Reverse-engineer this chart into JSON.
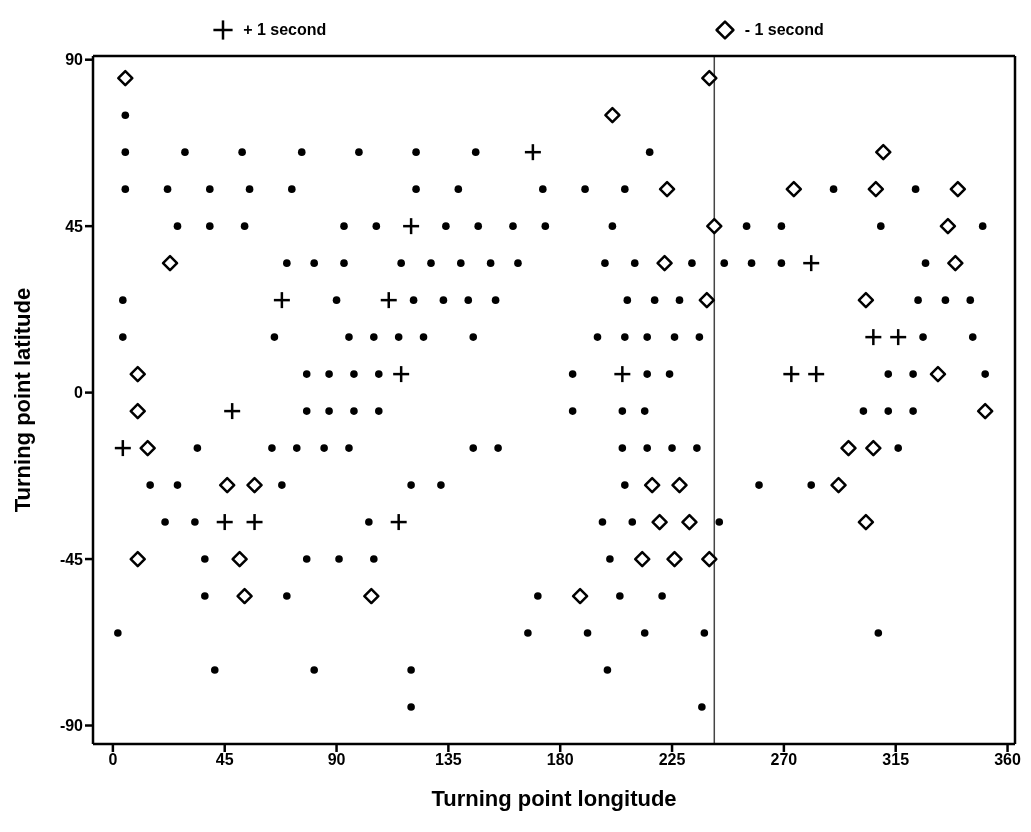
{
  "chart_data": {
    "type": "scatter",
    "xlabel": "Turning point longitude",
    "ylabel": "Turning point latitude",
    "xlim": [
      -8,
      363
    ],
    "ylim": [
      -95,
      91
    ],
    "xticks": [
      0,
      45,
      90,
      135,
      180,
      225,
      270,
      315,
      360
    ],
    "yticks": [
      -90,
      -45,
      0,
      45,
      90
    ],
    "legend": "top",
    "ref_lines": [
      {
        "axis": "x",
        "value": 242,
        "color": "#444444"
      }
    ],
    "series": [
      {
        "name": "+ 1 second",
        "color": "#000000",
        "marker": "cross",
        "x": [
          169,
          120,
          68,
          111,
          116,
          48,
          4,
          45,
          57,
          115,
          281,
          306,
          316,
          273,
          283,
          205
        ],
        "values": [
          65,
          45,
          25,
          25,
          5,
          -5,
          -15,
          -35,
          -35,
          -35,
          35,
          15,
          15,
          5,
          5,
          5
        ]
      },
      {
        "name": "- 1 second",
        "color": "#000000",
        "marker": "diamond",
        "x": [
          5,
          240,
          201,
          310,
          223,
          274,
          307,
          340,
          242,
          336,
          23,
          222,
          339,
          239,
          303,
          10,
          332,
          10,
          351,
          14,
          296,
          306,
          46,
          57,
          217,
          228,
          292,
          220,
          232,
          303,
          10,
          51,
          213,
          226,
          240,
          53,
          104,
          188
        ],
        "values": [
          85,
          85,
          75,
          65,
          55,
          55,
          55,
          55,
          45,
          45,
          35,
          35,
          35,
          25,
          25,
          5,
          5,
          -5,
          -5,
          -15,
          -15,
          -15,
          -25,
          -25,
          -25,
          -25,
          -25,
          -35,
          -35,
          -35,
          -45,
          -45,
          -45,
          -45,
          -45,
          -55,
          -55,
          -55
        ]
      },
      {
        "color": "#000000",
        "marker": "circle",
        "x": [
          5,
          5,
          29,
          52,
          76,
          99,
          122,
          146,
          216,
          5,
          22,
          39,
          55,
          72,
          122,
          139,
          173,
          190,
          206,
          290,
          323,
          26,
          39,
          53,
          93,
          106,
          134,
          147,
          161,
          174,
          201,
          255,
          269,
          309,
          350,
          70,
          81,
          93,
          116,
          128,
          140,
          152,
          163,
          198,
          210,
          233,
          246,
          257,
          269,
          327,
          4,
          90,
          121,
          133,
          143,
          154,
          207,
          218,
          228,
          324,
          335,
          345,
          4,
          65,
          95,
          105,
          115,
          125,
          145,
          195,
          206,
          215,
          226,
          236,
          326,
          346,
          78,
          87,
          97,
          107,
          185,
          215,
          224,
          312,
          322,
          351,
          78,
          87,
          97,
          107,
          185,
          205,
          214,
          302,
          312,
          322,
          34,
          64,
          74,
          85,
          95,
          145,
          155,
          205,
          215,
          225,
          235,
          316,
          15,
          26,
          68,
          120,
          132,
          206,
          260,
          281,
          21,
          33,
          103,
          197,
          209,
          244,
          37,
          78,
          91,
          105,
          200,
          37,
          70,
          171,
          204,
          221,
          2,
          167,
          191,
          214,
          238,
          308,
          41,
          81,
          120,
          199,
          120,
          237
        ],
        "values": [
          75,
          65,
          65,
          65,
          65,
          65,
          65,
          65,
          65,
          55,
          55,
          55,
          55,
          55,
          55,
          55,
          55,
          55,
          55,
          55,
          55,
          45,
          45,
          45,
          45,
          45,
          45,
          45,
          45,
          45,
          45,
          45,
          45,
          45,
          45,
          35,
          35,
          35,
          35,
          35,
          35,
          35,
          35,
          35,
          35,
          35,
          35,
          35,
          35,
          35,
          25,
          25,
          25,
          25,
          25,
          25,
          25,
          25,
          25,
          25,
          25,
          25,
          15,
          15,
          15,
          15,
          15,
          15,
          15,
          15,
          15,
          15,
          15,
          15,
          15,
          15,
          5,
          5,
          5,
          5,
          5,
          5,
          5,
          5,
          5,
          5,
          -5,
          -5,
          -5,
          -5,
          -5,
          -5,
          -5,
          -5,
          -5,
          -5,
          -15,
          -15,
          -15,
          -15,
          -15,
          -15,
          -15,
          -15,
          -15,
          -15,
          -15,
          -15,
          -25,
          -25,
          -25,
          -25,
          -25,
          -25,
          -25,
          -25,
          -35,
          -35,
          -35,
          -35,
          -35,
          -35,
          -45,
          -45,
          -45,
          -45,
          -45,
          -55,
          -55,
          -55,
          -55,
          -55,
          -65,
          -65,
          -65,
          -65,
          -65,
          -65,
          -75,
          -75,
          -75,
          -75,
          -85,
          -85
        ]
      }
    ]
  }
}
